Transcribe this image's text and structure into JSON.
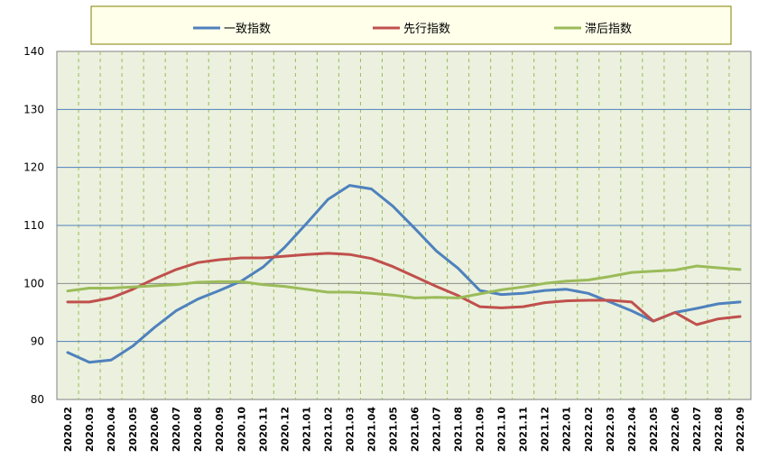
{
  "chart_data": {
    "type": "line",
    "title": "",
    "xlabel": "",
    "ylabel": "",
    "ylim": [
      80,
      140
    ],
    "yticks": [
      "80",
      "90",
      "100",
      "110",
      "120",
      "130",
      "140"
    ],
    "categories": [
      "2020.02",
      "2020.03",
      "2020.04",
      "2020.05",
      "2020.06",
      "2020.07",
      "2020.08",
      "2020.09",
      "2020.10",
      "2020.11",
      "2020.12",
      "2021.01",
      "2021.02",
      "2021.03",
      "2021.04",
      "2021.05",
      "2021.06",
      "2021.07",
      "2021.08",
      "2021.09",
      "2021.10",
      "2021.11",
      "2021.12",
      "2022.01",
      "2022.02",
      "2022.03",
      "2022.04",
      "2022.05",
      "2022.06",
      "2022.07",
      "2022.08",
      "2022.09"
    ],
    "legend_position": "top",
    "grid": true,
    "plot_background": "#ebf1de",
    "series": [
      {
        "name": "一致指数",
        "color": "#4f81bd",
        "values": [
          88.1,
          86.4,
          86.8,
          89.2,
          92.4,
          95.3,
          97.3,
          98.8,
          100.4,
          102.8,
          106.2,
          110.3,
          114.5,
          116.9,
          116.3,
          113.3,
          109.5,
          105.6,
          102.6,
          98.8,
          98.1,
          98.3,
          98.8,
          99.0,
          98.3,
          96.8,
          95.3,
          93.5,
          95.0,
          95.7,
          96.5,
          96.8
        ]
      },
      {
        "name": "先行指数",
        "color": "#c0504d",
        "values": [
          96.8,
          96.8,
          97.5,
          99.0,
          100.8,
          102.4,
          103.6,
          104.1,
          104.4,
          104.4,
          104.7,
          105.0,
          105.2,
          105.0,
          104.3,
          102.9,
          101.2,
          99.5,
          97.9,
          96.0,
          95.8,
          96.0,
          96.7,
          97.0,
          97.1,
          97.1,
          96.8,
          93.5,
          95.0,
          92.9,
          93.9,
          94.3
        ]
      },
      {
        "name": "滞后指数",
        "color": "#9bbb59",
        "values": [
          98.7,
          99.2,
          99.2,
          99.4,
          99.6,
          99.8,
          100.2,
          100.3,
          100.3,
          99.8,
          99.5,
          99.0,
          98.5,
          98.5,
          98.3,
          98.0,
          97.5,
          97.6,
          97.5,
          98.2,
          98.9,
          99.4,
          100.0,
          100.4,
          100.6,
          101.2,
          101.9,
          102.1,
          102.3,
          103.0,
          102.7,
          102.4
        ]
      }
    ]
  }
}
